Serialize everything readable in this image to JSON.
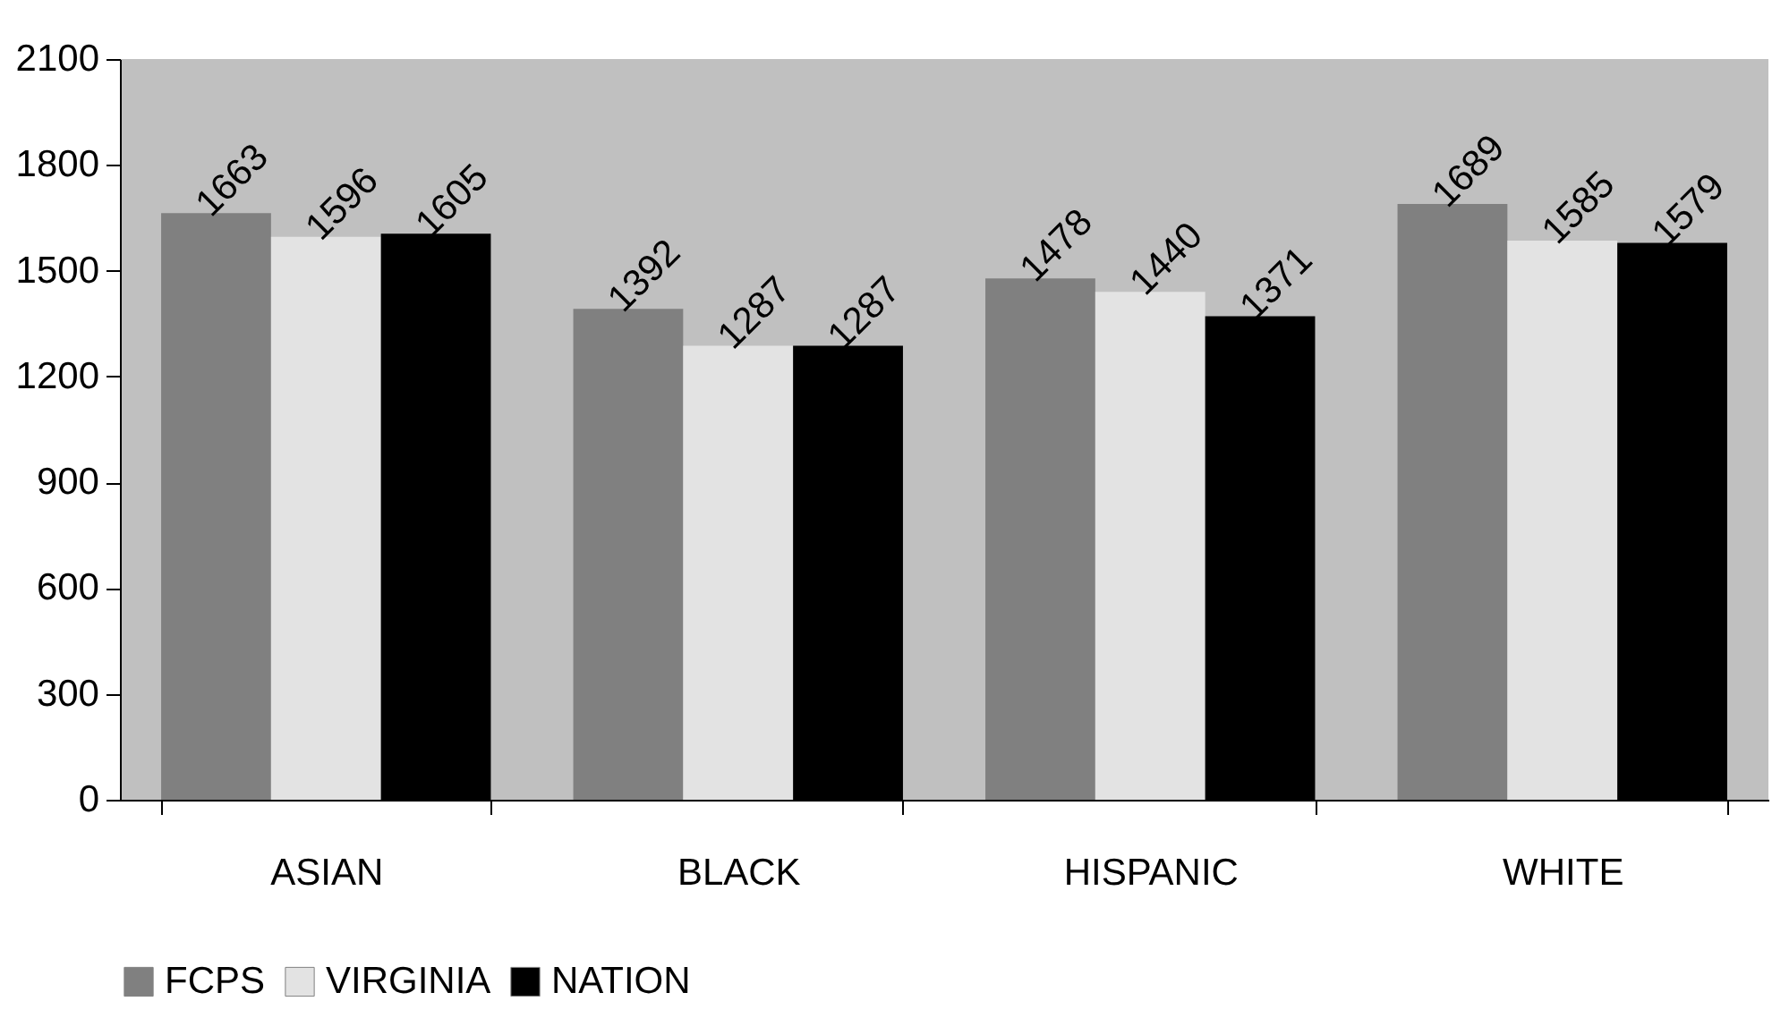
{
  "chart_data": {
    "type": "bar",
    "categories": [
      "ASIAN",
      "BLACK",
      "HISPANIC",
      "WHITE"
    ],
    "series": [
      {
        "name": "FCPS",
        "color": "#808080",
        "values": [
          1663,
          1392,
          1478,
          1689
        ]
      },
      {
        "name": "VIRGINIA",
        "color": "#e3e3e3",
        "values": [
          1596,
          1287,
          1440,
          1585
        ]
      },
      {
        "name": "NATION",
        "color": "#000000",
        "values": [
          1605,
          1287,
          1371,
          1579
        ]
      }
    ],
    "ylim": [
      0,
      2100
    ],
    "yticks": [
      0,
      300,
      600,
      900,
      1200,
      1500,
      1800,
      2100
    ],
    "grid": false,
    "legend": "bottom",
    "data_labels": true
  }
}
